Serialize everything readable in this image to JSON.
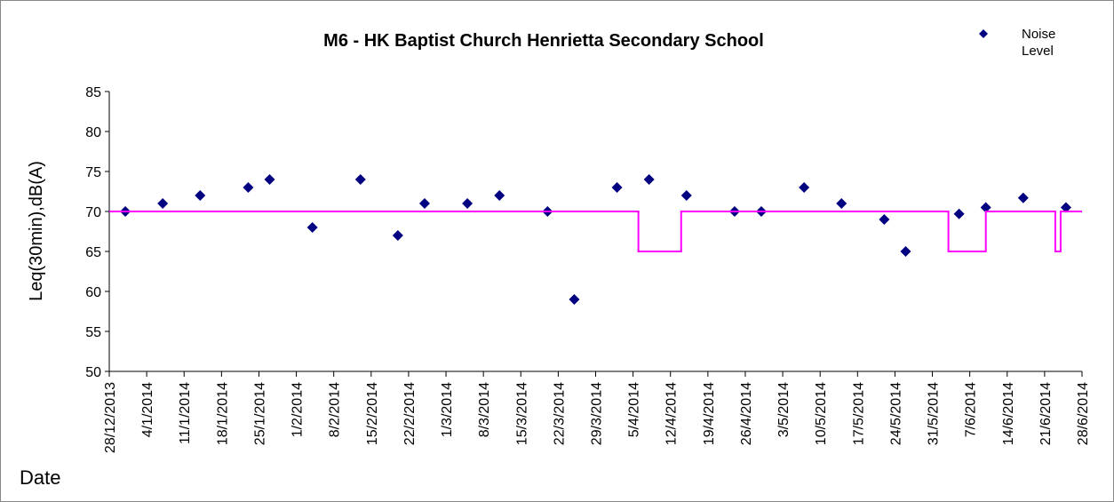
{
  "chart_data": {
    "type": "scatter",
    "title": "M6 - HK Baptist Church Henrietta Secondary School",
    "x_label": "Date",
    "y_label": "Leq(30min),dB(A)",
    "xlim": [
      "2013-12-28",
      "2014-06-28"
    ],
    "xticks": [
      {
        "value": "2013-12-28",
        "label": "28/12/2013"
      },
      {
        "value": "2014-01-04",
        "label": "4/1/2014"
      },
      {
        "value": "2014-01-11",
        "label": "11/1/2014"
      },
      {
        "value": "2014-01-18",
        "label": "18/1/2014"
      },
      {
        "value": "2014-01-25",
        "label": "25/1/2014"
      },
      {
        "value": "2014-02-01",
        "label": "1/2/2014"
      },
      {
        "value": "2014-02-08",
        "label": "8/2/2014"
      },
      {
        "value": "2014-02-15",
        "label": "15/2/2014"
      },
      {
        "value": "2014-02-22",
        "label": "22/2/2014"
      },
      {
        "value": "2014-03-01",
        "label": "1/3/2014"
      },
      {
        "value": "2014-03-08",
        "label": "8/3/2014"
      },
      {
        "value": "2014-03-15",
        "label": "15/3/2014"
      },
      {
        "value": "2014-03-22",
        "label": "22/3/2014"
      },
      {
        "value": "2014-03-29",
        "label": "29/3/2014"
      },
      {
        "value": "2014-04-05",
        "label": "5/4/2014"
      },
      {
        "value": "2014-04-12",
        "label": "12/4/2014"
      },
      {
        "value": "2014-04-19",
        "label": "19/4/2014"
      },
      {
        "value": "2014-04-26",
        "label": "26/4/2014"
      },
      {
        "value": "2014-05-03",
        "label": "3/5/2014"
      },
      {
        "value": "2014-05-10",
        "label": "10/5/2014"
      },
      {
        "value": "2014-05-17",
        "label": "17/5/2014"
      },
      {
        "value": "2014-05-24",
        "label": "24/5/2014"
      },
      {
        "value": "2014-05-31",
        "label": "31/5/2014"
      },
      {
        "value": "2014-06-07",
        "label": "7/6/2014"
      },
      {
        "value": "2014-06-14",
        "label": "14/6/2014"
      },
      {
        "value": "2014-06-21",
        "label": "21/6/2014"
      },
      {
        "value": "2014-06-28",
        "label": "28/6/2014"
      }
    ],
    "ylim": [
      50,
      85
    ],
    "yticks": [
      50,
      55,
      60,
      65,
      70,
      75,
      80,
      85
    ],
    "series": [
      {
        "name": "Noise Level",
        "type": "scatter",
        "color": "#000080",
        "x": [
          "2013-12-31",
          "2014-01-07",
          "2014-01-14",
          "2014-01-23",
          "2014-01-27",
          "2014-02-04",
          "2014-02-13",
          "2014-02-20",
          "2014-02-25",
          "2014-03-05",
          "2014-03-11",
          "2014-03-20",
          "2014-03-25",
          "2014-04-02",
          "2014-04-08",
          "2014-04-15",
          "2014-04-24",
          "2014-04-29",
          "2014-05-07",
          "2014-05-14",
          "2014-05-22",
          "2014-05-26",
          "2014-06-05",
          "2014-06-10",
          "2014-06-17",
          "2014-06-25"
        ],
        "values": [
          70,
          71,
          72,
          73,
          74,
          68,
          74,
          67,
          71,
          71,
          72,
          70,
          59,
          73,
          74,
          72,
          70,
          70,
          73,
          71,
          69,
          65,
          69.7,
          70.5,
          71.7,
          70.5
        ]
      },
      {
        "type": "step",
        "color": "#ff00ff",
        "x": [
          "2013-12-28",
          "2014-04-06",
          "2014-04-14",
          "2014-06-03",
          "2014-06-10",
          "2014-06-23",
          "2014-06-24",
          "2014-06-28"
        ],
        "values": [
          70,
          65,
          70,
          65,
          70,
          65,
          70,
          70
        ]
      }
    ],
    "legend": "top-right"
  }
}
